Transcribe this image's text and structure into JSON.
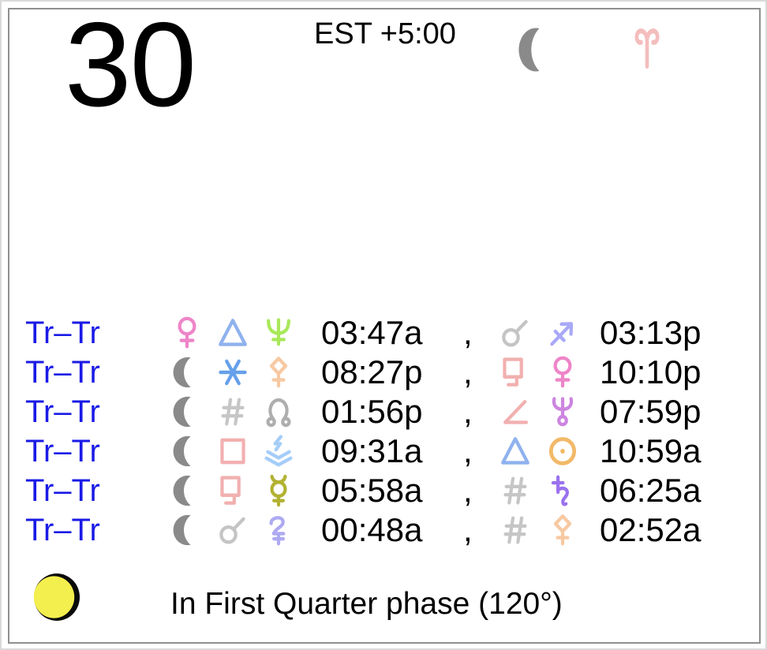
{
  "header": {
    "day": "30",
    "timezone": "EST +5:00",
    "moon_glyph": "moon",
    "sign_glyph": "aries"
  },
  "table": {
    "row_label": "Tr–Tr",
    "separator": ",",
    "rows": [
      {
        "label": "Tr–Tr",
        "p1": "venus",
        "asp1": "trine",
        "p2": "neptune",
        "time1": "03:47a",
        "sep": ",",
        "asp2": "conjunction",
        "p3": "sagittarius",
        "time2": "03:13p"
      },
      {
        "label": "Tr–Tr",
        "p1": "moon",
        "asp1": "sextile",
        "p2": "pallas",
        "time1": "08:27p",
        "sep": ",",
        "asp2": "sesquiquadrate",
        "p3": "venus",
        "time2": "10:10p"
      },
      {
        "label": "Tr–Tr",
        "p1": "moon",
        "asp1": "contraparallel",
        "p2": "north_node",
        "time1": "01:56p",
        "sep": ",",
        "asp2": "semisquare",
        "p3": "uranus",
        "time2": "07:59p"
      },
      {
        "label": "Tr–Tr",
        "p1": "moon",
        "asp1": "square",
        "p2": "eris",
        "time1": "09:31a",
        "sep": ",",
        "asp2": "trine",
        "p3": "sun",
        "time2": "10:59a"
      },
      {
        "label": "Tr–Tr",
        "p1": "moon",
        "asp1": "sesquiquadrate",
        "p2": "mercury",
        "time1": "05:58a",
        "sep": ",",
        "asp2": "contraparallel",
        "p3": "saturn",
        "time2": "06:25a"
      },
      {
        "label": "Tr–Tr",
        "p1": "moon",
        "asp1": "conjunction",
        "p2": "jupiter",
        "time1": "00:48a",
        "sep": ",",
        "asp2": "contraparallel",
        "p3": "pallas",
        "time2": "02:52a"
      }
    ]
  },
  "footer": {
    "phase_icon": "first-quarter-moon",
    "phase_text": "In First Quarter phase (120°)"
  },
  "colors": {
    "row_label": "#1a1ae6",
    "time_text": "#000000",
    "phase_yellow": "#f3ef4e",
    "phase_outline": "#0a0a0a"
  },
  "glyph_colors": {
    "moon": "#8a8a8a",
    "venus": "#ee85c8",
    "neptune": "#a8e85a",
    "trine": "#8fb2ee",
    "conjunction": "#c4c4c4",
    "sagittarius": "#a9a9f7",
    "sextile": "#66a0ea",
    "pallas": "#f7c9a2",
    "sesquiquadrate": "#f2b0b0",
    "square": "#f2b0b0",
    "semisquare": "#f2b0b0",
    "contraparallel": "#c6c6c6",
    "north_node": "#aeaeae",
    "uranus": "#cd85e0",
    "eris": "#a5cdf8",
    "sun": "#f2b968",
    "mercury": "#b2b232",
    "saturn": "#9a72ee",
    "jupiter": "#aeaaf2",
    "aries": "#f4bdbd"
  }
}
